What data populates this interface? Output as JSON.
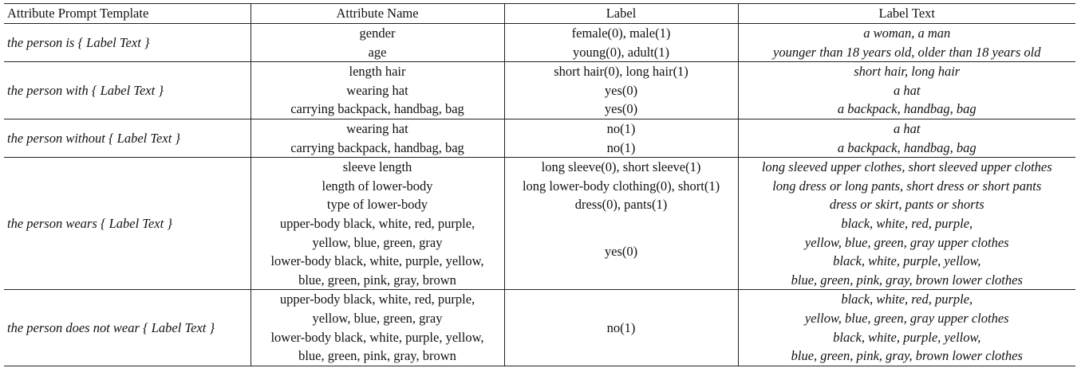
{
  "header": {
    "template": "Attribute Prompt Template",
    "attribute": "Attribute Name",
    "label": "Label",
    "label_text": "Label Text"
  },
  "groups": [
    {
      "template": "the person is { Label Text }",
      "attributes": [
        "gender",
        "age"
      ],
      "labels": [
        "female(0), male(1)",
        "young(0), adult(1)"
      ],
      "label_texts": [
        "a woman, a man",
        "younger than 18 years old, older than 18 years old"
      ]
    },
    {
      "template": "the person with { Label Text }",
      "attributes": [
        "length hair",
        "wearing hat",
        "carrying backpack, handbag, bag"
      ],
      "labels": [
        "short hair(0), long hair(1)",
        "yes(0)",
        "yes(0)"
      ],
      "label_texts": [
        "short hair, long hair",
        "a hat",
        "a backpack, handbag, bag"
      ]
    },
    {
      "template": "the person without { Label Text }",
      "attributes": [
        "wearing hat",
        "carrying backpack, handbag, bag"
      ],
      "labels": [
        "no(1)",
        "no(1)"
      ],
      "label_texts": [
        "a hat",
        "a backpack, handbag, bag"
      ]
    },
    {
      "template": "the person wears { Label Text }",
      "attributes": [
        "sleeve length",
        "length of lower-body",
        "type of lower-body",
        "upper-body black, white, red, purple,",
        "yellow, blue, green, gray",
        "lower-body black, white, purple, yellow,",
        "blue, green, pink, gray, brown"
      ],
      "labels": [
        "long sleeve(0), short sleeve(1)",
        "long lower-body clothing(0), short(1)",
        "dress(0), pants(1)",
        "yes(0)"
      ],
      "label_texts": [
        "long sleeved upper clothes, short sleeved upper clothes",
        "long dress or long pants, short dress or short pants",
        "dress or skirt, pants or shorts",
        "black, white, red, purple,",
        "yellow, blue, green, gray upper clothes",
        "black, white, purple, yellow,",
        "blue, green, pink, gray, brown lower clothes"
      ]
    },
    {
      "template": "the person does not wear { Label Text }",
      "attributes": [
        "upper-body black, white, red, purple,",
        "yellow, blue, green, gray",
        "lower-body black, white, purple, yellow,",
        "blue, green, pink, gray, brown"
      ],
      "labels": [
        "no(1)"
      ],
      "label_texts": [
        "black, white, red, purple,",
        "yellow, blue, green, gray upper clothes",
        "black, white, purple, yellow,",
        "blue, green, pink, gray, brown lower clothes"
      ]
    }
  ]
}
